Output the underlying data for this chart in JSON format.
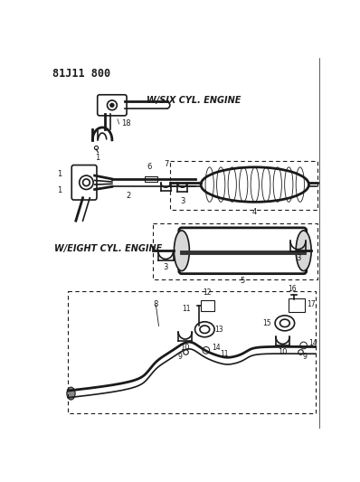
{
  "title": "81J11 800",
  "bg_color": "#ffffff",
  "lc": "#1a1a1a",
  "label_six": "W/SIX CYL. ENGINE",
  "label_eight": "W/EIGHT CYL. ENGINE"
}
